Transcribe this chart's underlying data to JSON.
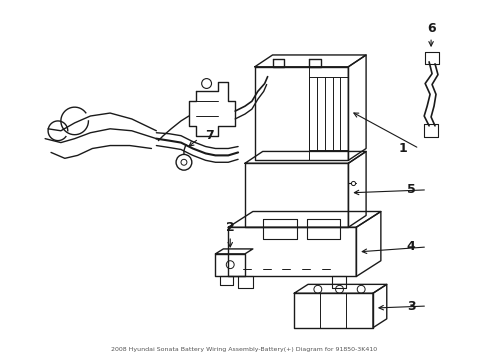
{
  "title": "2008 Hyundai Sonata Battery Wiring Assembly-Battery(+) Diagram for 91850-3K410",
  "bg": "#ffffff",
  "lc": "#1a1a1a",
  "lw": 1.0,
  "figsize": [
    4.89,
    3.6
  ],
  "dpi": 100
}
